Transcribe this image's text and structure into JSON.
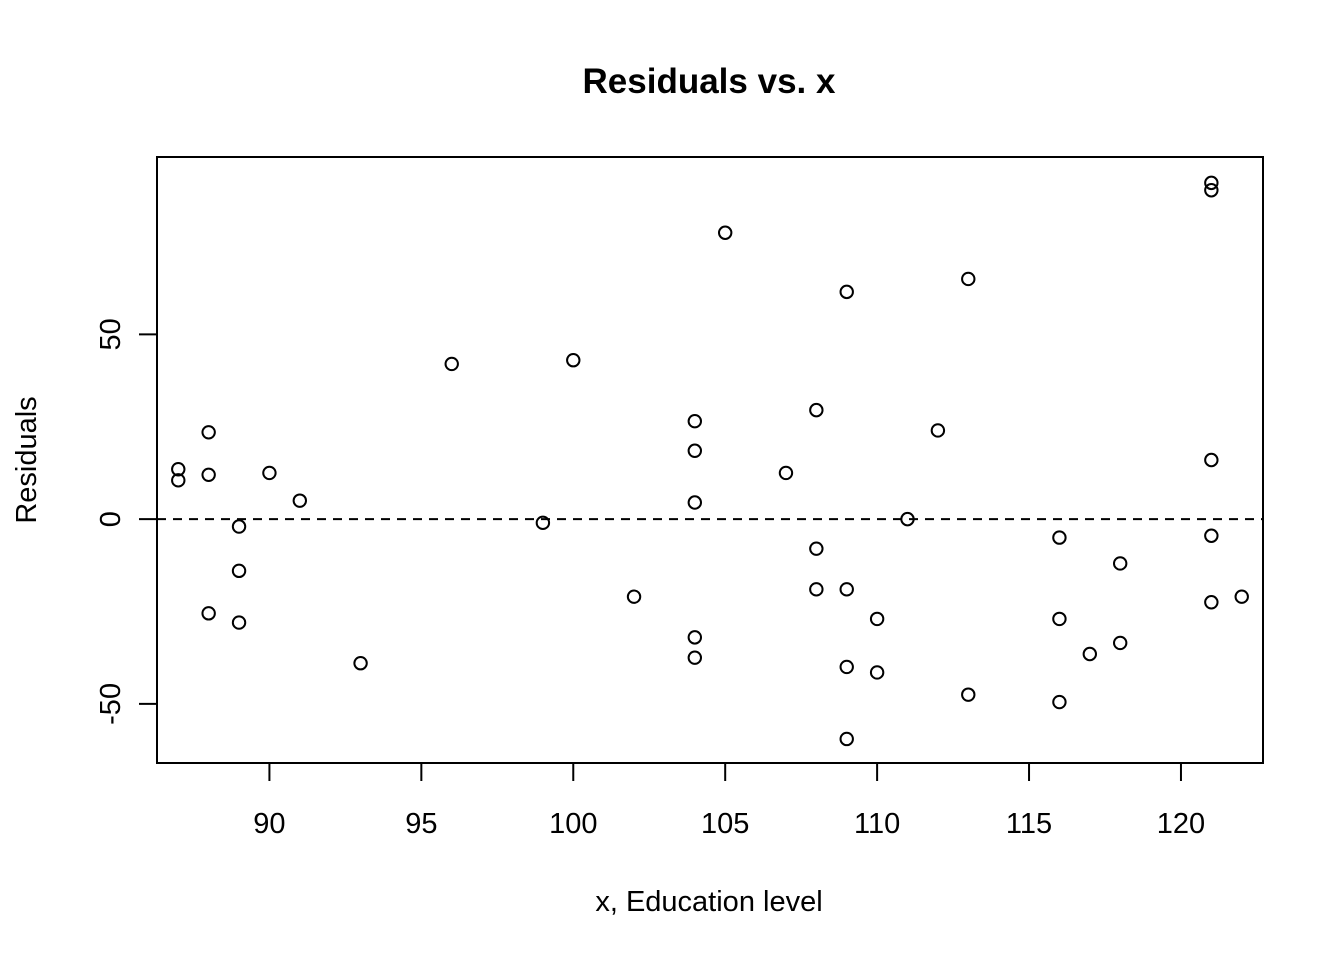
{
  "chart_data": {
    "type": "scatter",
    "title": "Residuals vs. x",
    "xlabel": "x, Education level",
    "ylabel": "Residuals",
    "xlim": [
      86.3,
      122.7
    ],
    "ylim": [
      -66,
      98
    ],
    "x_ticks": [
      90,
      95,
      100,
      105,
      110,
      115,
      120
    ],
    "y_ticks": [
      -50,
      0,
      50
    ],
    "reference_line": {
      "y": 0,
      "style": "dashed"
    },
    "grid": false,
    "legend": "none",
    "marker": "open-circle",
    "points": [
      {
        "x": 87,
        "y": 13.5
      },
      {
        "x": 87,
        "y": 10.5
      },
      {
        "x": 88,
        "y": 23.5
      },
      {
        "x": 88,
        "y": 12
      },
      {
        "x": 88,
        "y": -25.5
      },
      {
        "x": 89,
        "y": -2
      },
      {
        "x": 89,
        "y": -14
      },
      {
        "x": 89,
        "y": -28
      },
      {
        "x": 90,
        "y": 12.5
      },
      {
        "x": 91,
        "y": 5
      },
      {
        "x": 93,
        "y": -39
      },
      {
        "x": 96,
        "y": 42
      },
      {
        "x": 99,
        "y": -1
      },
      {
        "x": 100,
        "y": 43
      },
      {
        "x": 102,
        "y": -21
      },
      {
        "x": 104,
        "y": 26.5
      },
      {
        "x": 104,
        "y": 18.5
      },
      {
        "x": 104,
        "y": 4.5
      },
      {
        "x": 104,
        "y": -32
      },
      {
        "x": 104,
        "y": -37.5
      },
      {
        "x": 105,
        "y": 77.5
      },
      {
        "x": 107,
        "y": 12.5
      },
      {
        "x": 108,
        "y": 29.5
      },
      {
        "x": 108,
        "y": -8
      },
      {
        "x": 108,
        "y": -19
      },
      {
        "x": 109,
        "y": 61.5
      },
      {
        "x": 109,
        "y": -19
      },
      {
        "x": 109,
        "y": -40
      },
      {
        "x": 109,
        "y": -59.5
      },
      {
        "x": 110,
        "y": -27
      },
      {
        "x": 110,
        "y": -41.5
      },
      {
        "x": 111,
        "y": 0
      },
      {
        "x": 112,
        "y": 24
      },
      {
        "x": 113,
        "y": 65
      },
      {
        "x": 113,
        "y": -47.5
      },
      {
        "x": 116,
        "y": -5
      },
      {
        "x": 116,
        "y": -27
      },
      {
        "x": 116,
        "y": -49.5
      },
      {
        "x": 117,
        "y": -36.5
      },
      {
        "x": 118,
        "y": -12
      },
      {
        "x": 118,
        "y": -33.5
      },
      {
        "x": 121,
        "y": 91
      },
      {
        "x": 121,
        "y": 89
      },
      {
        "x": 121,
        "y": 16
      },
      {
        "x": 121,
        "y": -4.5
      },
      {
        "x": 121,
        "y": -22.5
      },
      {
        "x": 122,
        "y": -21
      }
    ]
  }
}
